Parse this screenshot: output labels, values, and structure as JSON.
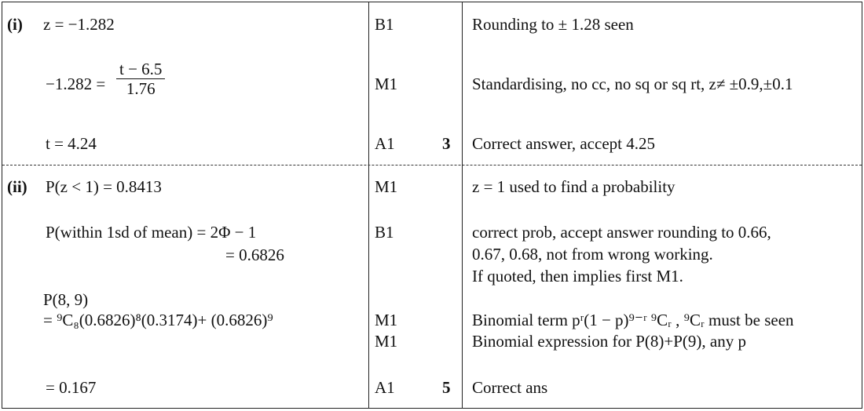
{
  "part_i": {
    "label": "(i)",
    "rows": [
      {
        "working": "z = −1.282",
        "mark": "B1",
        "comment": "Rounding to ± 1.28 seen"
      },
      {
        "working_lhs": "−1.282 =",
        "numerator": "t − 6.5",
        "denominator": "1.76",
        "mark": "M1",
        "comment": "Standardising, no cc, no sq or sq rt, z≠ ±0.9,±0.1"
      },
      {
        "working": "t = 4.24",
        "mark": "A1",
        "total": "3",
        "comment": "Correct answer, accept 4.25"
      }
    ]
  },
  "part_ii": {
    "label": "(ii)",
    "rows": [
      {
        "working": "P(z < 1) = 0.8413",
        "mark": "M1",
        "comment": "z = 1 used to find a probability"
      },
      {
        "working": "P(within 1sd of mean) = 2Φ − 1",
        "working2": "= 0.6826",
        "mark": "B1",
        "comment": "correct prob, accept answer rounding to 0.66,",
        "comment2": "0.67, 0.68, not from wrong working.",
        "comment3": "If quoted, then implies first M1."
      },
      {
        "working": "P(8, 9)",
        "working2": "= ⁹C₈(0.6826)⁸(0.3174)+ (0.6826)⁹",
        "mark": "M1",
        "mark2": "M1",
        "comment": "Binomial term pʳ(1 − p)⁹⁻ʳ ⁹Cᵣ , ⁹Cᵣ must be seen",
        "comment2": "Binomial expression for P(8)+P(9), any p"
      },
      {
        "working": "= 0.167",
        "mark": "A1",
        "total": "5",
        "comment": "Correct ans"
      }
    ]
  }
}
